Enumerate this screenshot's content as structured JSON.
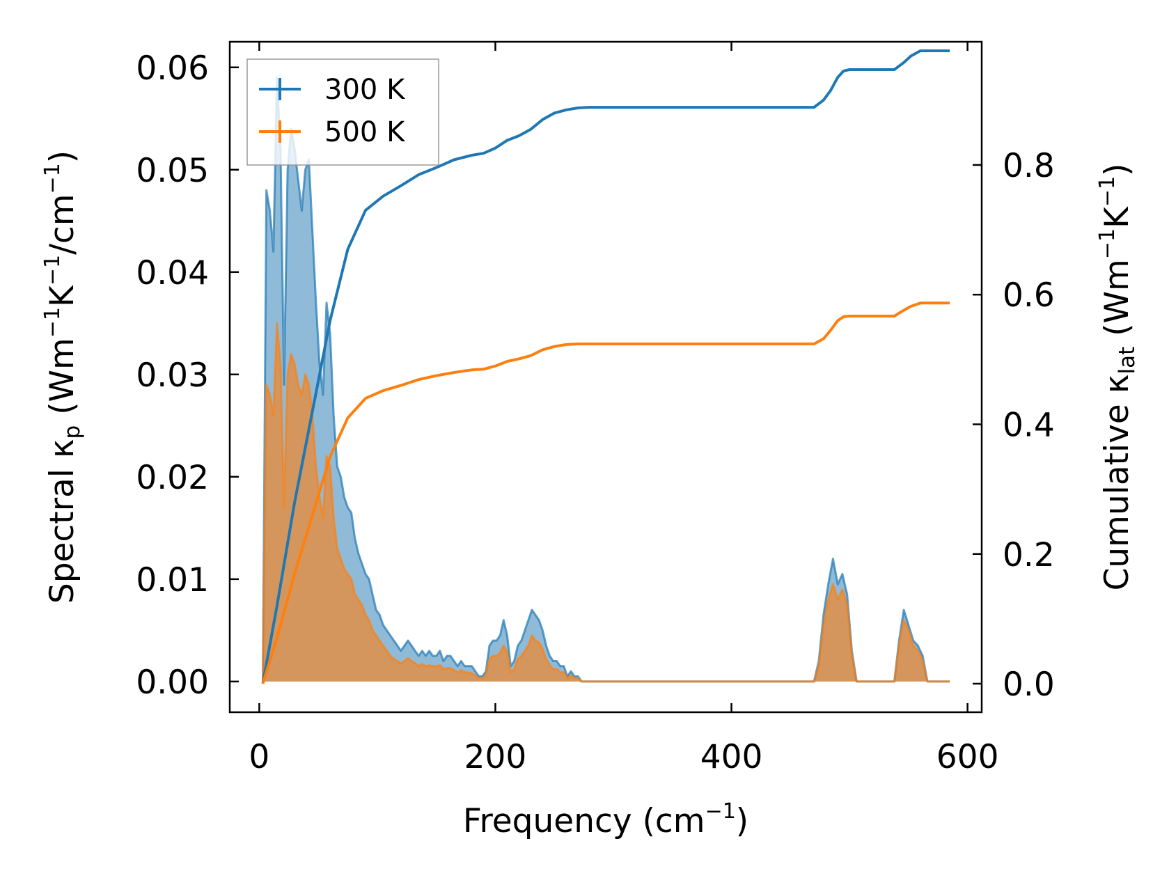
{
  "chart_data": {
    "type": "line",
    "xlabel": {
      "main": "Frequency (cm",
      "sup": "−1",
      "tail": ")"
    },
    "ylabel_left": {
      "a": "Spectral κ",
      "a_sub": "p",
      "b": " (Wm",
      "b_sup": "−1",
      "c": "K",
      "c_sup": "−1",
      "d": "/cm",
      "d_sup": "−1",
      "e": ")"
    },
    "ylabel_right": {
      "a": "Cumulative κ",
      "a_sub": "lat",
      "b": " (Wm",
      "b_sup": "−1",
      "c": "K",
      "c_sup": "−1",
      "d": ")"
    },
    "xlim": [
      -25,
      612
    ],
    "ylim_left": [
      -0.003,
      0.0625
    ],
    "ylim_right": [
      -0.044,
      0.99
    ],
    "xticks": [
      0,
      200,
      400,
      600
    ],
    "xtick_labels": [
      "0",
      "200",
      "400",
      "600"
    ],
    "yticks_left": [
      0.0,
      0.01,
      0.02,
      0.03,
      0.04,
      0.05,
      0.06
    ],
    "ytick_labels_left": [
      "0.00",
      "0.01",
      "0.02",
      "0.03",
      "0.04",
      "0.05",
      "0.06"
    ],
    "yticks_right": [
      0.0,
      0.2,
      0.4,
      0.6,
      0.8
    ],
    "ytick_labels_right": [
      "0.0",
      "0.2",
      "0.4",
      "0.6",
      "0.8"
    ],
    "legend_position": "top-left",
    "series": [
      {
        "name": "300 K",
        "color": "#1f77b4",
        "spectral": {
          "x": [
            3,
            6,
            9,
            12,
            15,
            18,
            21,
            24,
            27,
            30,
            33,
            36,
            39,
            42,
            45,
            48,
            51,
            54,
            57,
            60,
            63,
            66,
            69,
            72,
            75,
            78,
            81,
            84,
            87,
            90,
            93,
            96,
            99,
            102,
            105,
            108,
            111,
            114,
            117,
            120,
            123,
            126,
            129,
            132,
            135,
            138,
            141,
            144,
            147,
            150,
            153,
            156,
            159,
            162,
            165,
            168,
            171,
            174,
            177,
            180,
            183,
            186,
            189,
            192,
            195,
            198,
            201,
            204,
            207,
            210,
            213,
            216,
            219,
            222,
            225,
            228,
            231,
            234,
            237,
            240,
            243,
            246,
            249,
            252,
            255,
            258,
            261,
            264,
            267,
            270,
            273,
            276,
            280,
            300,
            400,
            470,
            474,
            478,
            482,
            486,
            490,
            494,
            498,
            502,
            506,
            510,
            520,
            530,
            538,
            542,
            546,
            550,
            554,
            558,
            562,
            566,
            570,
            585
          ],
          "y": [
            0.0,
            0.048,
            0.046,
            0.042,
            0.059,
            0.052,
            0.029,
            0.05,
            0.054,
            0.052,
            0.049,
            0.046,
            0.05,
            0.051,
            0.044,
            0.037,
            0.031,
            0.028,
            0.037,
            0.034,
            0.026,
            0.021,
            0.02,
            0.018,
            0.017,
            0.0165,
            0.014,
            0.0125,
            0.0115,
            0.0105,
            0.01,
            0.0085,
            0.007,
            0.0065,
            0.0055,
            0.005,
            0.0045,
            0.004,
            0.0035,
            0.003,
            0.0035,
            0.004,
            0.0035,
            0.003,
            0.0025,
            0.003,
            0.0025,
            0.003,
            0.0025,
            0.0025,
            0.003,
            0.002,
            0.0025,
            0.0025,
            0.002,
            0.0015,
            0.002,
            0.0015,
            0.0015,
            0.0015,
            0.001,
            0.0005,
            0.0005,
            0.001,
            0.0035,
            0.004,
            0.004,
            0.0045,
            0.006,
            0.0045,
            0.0015,
            0.002,
            0.0035,
            0.004,
            0.005,
            0.006,
            0.007,
            0.0065,
            0.006,
            0.005,
            0.0035,
            0.0025,
            0.002,
            0.002,
            0.0015,
            0.0015,
            0.0005,
            0.001,
            0.0005,
            0.0005,
            0.0,
            0.0,
            0.0,
            0.0,
            0.0,
            0.0,
            0.002,
            0.0065,
            0.0095,
            0.012,
            0.0095,
            0.0105,
            0.0085,
            0.003,
            0.0,
            0.0,
            0.0,
            0.0,
            0.0,
            0.004,
            0.007,
            0.0055,
            0.004,
            0.0035,
            0.0025,
            0.0,
            0.0,
            0.0
          ]
        },
        "cumulative": {
          "x": [
            3,
            15,
            30,
            45,
            60,
            75,
            90,
            105,
            120,
            135,
            150,
            165,
            180,
            190,
            200,
            210,
            220,
            230,
            240,
            250,
            260,
            270,
            280,
            300,
            400,
            470,
            478,
            484,
            490,
            495,
            500,
            520,
            538,
            546,
            552,
            560,
            570,
            585
          ],
          "y": [
            0.0,
            0.12,
            0.28,
            0.42,
            0.56,
            0.67,
            0.73,
            0.752,
            0.768,
            0.785,
            0.796,
            0.808,
            0.815,
            0.818,
            0.826,
            0.838,
            0.845,
            0.855,
            0.87,
            0.88,
            0.885,
            0.888,
            0.889,
            0.889,
            0.889,
            0.889,
            0.9,
            0.915,
            0.935,
            0.945,
            0.947,
            0.947,
            0.947,
            0.958,
            0.968,
            0.976,
            0.976,
            0.976
          ]
        }
      },
      {
        "name": "500 K",
        "color": "#ff7f0e",
        "spectral": {
          "x": [
            3,
            6,
            9,
            12,
            15,
            18,
            21,
            24,
            27,
            30,
            33,
            36,
            39,
            42,
            45,
            48,
            51,
            54,
            57,
            60,
            63,
            66,
            69,
            72,
            75,
            78,
            81,
            84,
            87,
            90,
            93,
            96,
            99,
            102,
            105,
            108,
            111,
            114,
            117,
            120,
            123,
            126,
            129,
            132,
            135,
            138,
            141,
            144,
            147,
            150,
            153,
            156,
            159,
            162,
            165,
            168,
            171,
            174,
            177,
            180,
            183,
            186,
            189,
            192,
            195,
            198,
            201,
            204,
            207,
            210,
            213,
            216,
            219,
            222,
            225,
            228,
            231,
            234,
            237,
            240,
            243,
            246,
            249,
            252,
            255,
            258,
            261,
            264,
            267,
            270,
            273,
            276,
            280,
            300,
            400,
            470,
            474,
            478,
            482,
            486,
            490,
            494,
            498,
            502,
            506,
            510,
            520,
            530,
            538,
            542,
            546,
            550,
            554,
            558,
            562,
            566,
            570,
            585
          ],
          "y": [
            0.0,
            0.029,
            0.028,
            0.026,
            0.035,
            0.031,
            0.017,
            0.03,
            0.032,
            0.031,
            0.029,
            0.028,
            0.03,
            0.029,
            0.026,
            0.021,
            0.018,
            0.016,
            0.022,
            0.021,
            0.016,
            0.013,
            0.012,
            0.011,
            0.0105,
            0.01,
            0.0085,
            0.008,
            0.0075,
            0.0065,
            0.006,
            0.005,
            0.0045,
            0.004,
            0.0035,
            0.003,
            0.0025,
            0.0022,
            0.002,
            0.0018,
            0.002,
            0.0023,
            0.002,
            0.0018,
            0.0015,
            0.0017,
            0.0015,
            0.0016,
            0.0015,
            0.0015,
            0.0016,
            0.0012,
            0.0013,
            0.0013,
            0.0011,
            0.0009,
            0.0011,
            0.0009,
            0.0009,
            0.0008,
            0.0006,
            0.0003,
            0.0003,
            0.0006,
            0.0022,
            0.0025,
            0.0025,
            0.0028,
            0.0035,
            0.0028,
            0.0009,
            0.0012,
            0.0022,
            0.0025,
            0.003,
            0.0035,
            0.0045,
            0.004,
            0.0038,
            0.0032,
            0.0022,
            0.0016,
            0.0012,
            0.0012,
            0.0009,
            0.0009,
            0.0003,
            0.0006,
            0.0003,
            0.0003,
            0.0,
            0.0,
            0.0,
            0.0,
            0.0,
            0.0,
            0.0015,
            0.0055,
            0.008,
            0.0095,
            0.008,
            0.009,
            0.0075,
            0.0025,
            0.0,
            0.0,
            0.0,
            0.0,
            0.0,
            0.0035,
            0.006,
            0.005,
            0.0035,
            0.003,
            0.002,
            0.0,
            0.0,
            0.0
          ]
        },
        "cumulative": {
          "x": [
            3,
            15,
            30,
            45,
            60,
            75,
            90,
            105,
            120,
            135,
            150,
            165,
            180,
            190,
            200,
            210,
            220,
            230,
            240,
            250,
            260,
            270,
            280,
            300,
            400,
            470,
            478,
            484,
            490,
            495,
            500,
            520,
            538,
            546,
            552,
            560,
            570,
            585
          ],
          "y": [
            0.0,
            0.07,
            0.17,
            0.26,
            0.35,
            0.41,
            0.44,
            0.452,
            0.46,
            0.469,
            0.475,
            0.48,
            0.484,
            0.485,
            0.49,
            0.497,
            0.501,
            0.506,
            0.515,
            0.52,
            0.523,
            0.524,
            0.524,
            0.524,
            0.524,
            0.524,
            0.532,
            0.545,
            0.56,
            0.566,
            0.567,
            0.567,
            0.567,
            0.576,
            0.582,
            0.587,
            0.587,
            0.587
          ]
        }
      }
    ]
  }
}
